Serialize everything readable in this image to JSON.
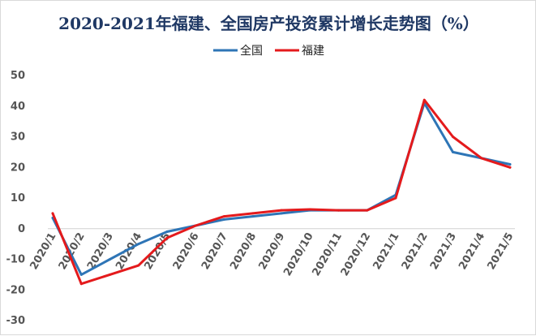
{
  "chart_data": {
    "type": "line",
    "title": "2020-2021年福建、全国房产投资累计增长走势图（%）",
    "xlabel": "",
    "ylabel": "",
    "ylim": [
      -30,
      50
    ],
    "yticks": [
      -30,
      -20,
      -10,
      0,
      10,
      20,
      30,
      40,
      50
    ],
    "grid": false,
    "legend_position": "top",
    "categories": [
      "2020/1",
      "2020/2",
      "2020/3",
      "2020/4",
      "2020/5",
      "2020/6",
      "2020/7",
      "2020/8",
      "2020/9",
      "2020/10",
      "2020/11",
      "2020/12",
      "2021/1",
      "2021/2",
      "2021/3",
      "2021/4",
      "2021/5"
    ],
    "series": [
      {
        "name": "全国",
        "color": "#2e75b6",
        "values": [
          3.5,
          -15,
          -10,
          -5,
          -1,
          1,
          3,
          4,
          5,
          6,
          6,
          6,
          11,
          41,
          25,
          23,
          21
        ]
      },
      {
        "name": "福建",
        "color": "#e41a1c",
        "values": [
          5,
          -18,
          -15,
          -12,
          -3,
          1,
          4,
          5,
          6,
          6.3,
          6,
          6,
          10,
          42,
          30,
          23,
          20
        ]
      }
    ]
  }
}
